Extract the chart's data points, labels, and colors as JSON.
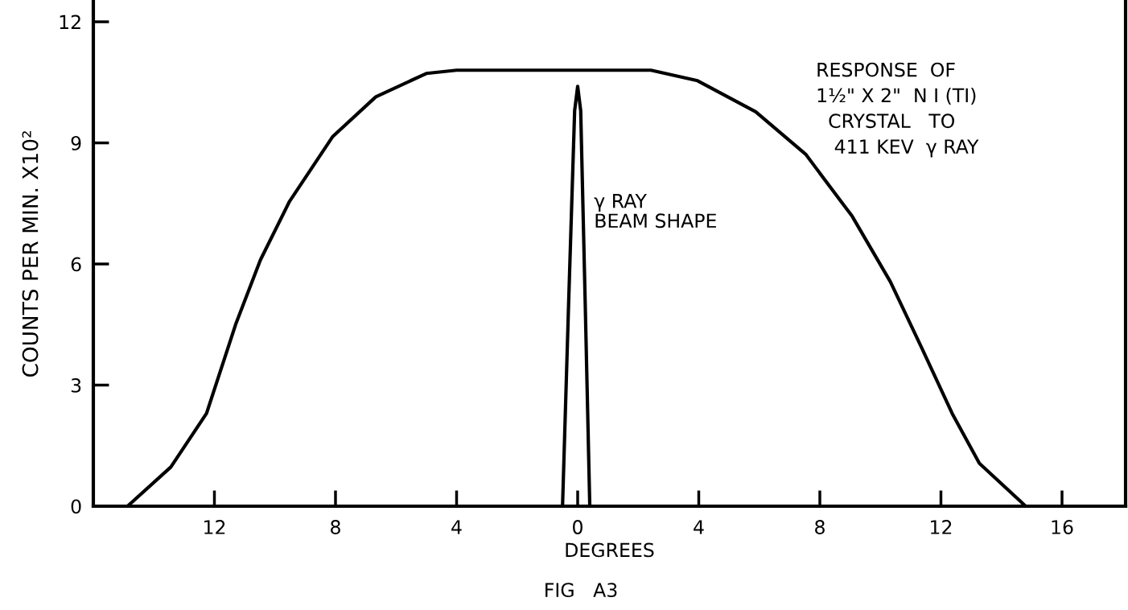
{
  "chart_data": {
    "type": "line",
    "xlabel": "DEGREES",
    "ylabel": "COUNTS PER MIN. X10²",
    "xlim": [
      -16,
      18.1
    ],
    "ylim": [
      0,
      12.5
    ],
    "xticks": [
      {
        "value": -12,
        "label": "12"
      },
      {
        "value": -8,
        "label": "8"
      },
      {
        "value": -4,
        "label": "4"
      },
      0,
      4,
      8,
      12,
      16
    ],
    "yticks": [
      0,
      3,
      6,
      9,
      12
    ],
    "grid": false,
    "legend": false,
    "line_style": "solid",
    "marker": "none",
    "series": [
      {
        "color": "#000000",
        "x": [
          -14.87,
          -13.44,
          -12.26,
          -11.3,
          -10.48,
          -9.52,
          -8.1,
          -6.67,
          -5.0,
          -4.0,
          0,
          2.42,
          3.96,
          5.88,
          7.53,
          9.07,
          10.33,
          11.36,
          12.37,
          13.27,
          14.8
        ],
        "values": [
          0,
          0.97,
          2.3,
          4.5,
          6.1,
          7.55,
          9.15,
          10.14,
          10.72,
          10.8,
          10.8,
          10.8,
          10.54,
          9.77,
          8.72,
          7.18,
          5.56,
          3.93,
          2.3,
          1.06,
          0
        ]
      },
      {
        "color": "#000000",
        "x": [
          -0.5,
          -0.3,
          -0.1,
          0,
          0.1,
          0.25,
          0.4
        ],
        "values": [
          0,
          5,
          9.8,
          10.4,
          9.8,
          5,
          0
        ]
      }
    ],
    "annotations": [
      "γ RAY\nBEAM SHAPE",
      "RESPONSE  OF\n1½\" X 2\"  N I (TI)\n  CRYSTAL   TO\n   411 KEV  γ RAY",
      "FIG   A3"
    ]
  }
}
